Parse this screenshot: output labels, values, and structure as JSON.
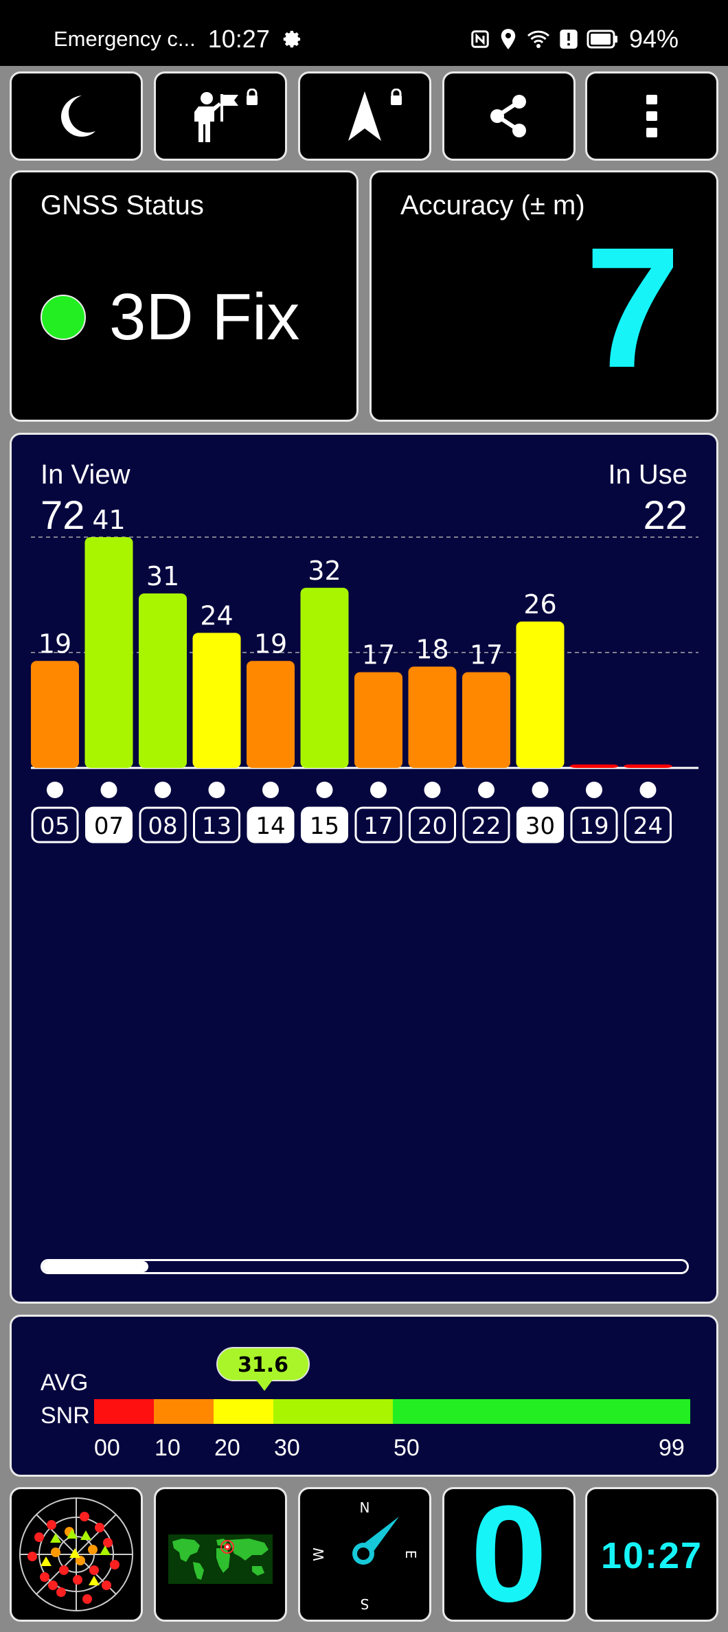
{
  "status_bar": {
    "carrier": "Emergency c...",
    "time": "10:27",
    "battery": "94%"
  },
  "toolbar": {
    "icons": [
      "moon-icon",
      "person-flag-icon",
      "navigation-arrow-icon",
      "share-icon",
      "more-vert-icon"
    ]
  },
  "gnss": {
    "title": "GNSS Status",
    "status": "3D Fix",
    "status_color": "#22ee22"
  },
  "accuracy": {
    "title": "Accuracy (± m)",
    "value": "7"
  },
  "sky": {
    "in_view_label": "In View",
    "in_view": "72",
    "in_use_label": "In Use",
    "in_use": "22"
  },
  "chart_data": {
    "type": "bar",
    "categories": [
      "05",
      "07",
      "08",
      "13",
      "14",
      "15",
      "17",
      "20",
      "22",
      "30",
      "19",
      "24"
    ],
    "values": [
      19,
      41,
      31,
      24,
      19,
      32,
      17,
      18,
      17,
      26,
      0,
      0
    ],
    "value_labels": [
      "19",
      "41",
      "31",
      "24",
      "19",
      "32",
      "17",
      "18",
      "17",
      "26",
      "",
      ""
    ],
    "highlighted": [
      false,
      true,
      false,
      false,
      true,
      true,
      false,
      false,
      false,
      true,
      false,
      false
    ],
    "colors": [
      "#ff8800",
      "#a9f500",
      "#a9f500",
      "#ffff00",
      "#ff8800",
      "#a9f500",
      "#ff8800",
      "#ff8800",
      "#ff8800",
      "#ffff00",
      "#ff0000",
      "#ff0000"
    ],
    "ylim": [
      0,
      60
    ],
    "grid": true
  },
  "snr": {
    "label_line1": "AVG",
    "label_line2": "SNR",
    "avg": "31.6",
    "avg_value": 31.6,
    "scale_labels": [
      "00",
      "10",
      "20",
      "30",
      "50",
      "99"
    ],
    "segment_colors": [
      "#ff1010",
      "#ff8800",
      "#ffff00",
      "#a9f500",
      "#22ee22"
    ]
  },
  "bottom": {
    "compass_n": "N",
    "compass_e": "E",
    "compass_s": "S",
    "compass_w": "W",
    "speed": "0",
    "clock": "10:27"
  }
}
